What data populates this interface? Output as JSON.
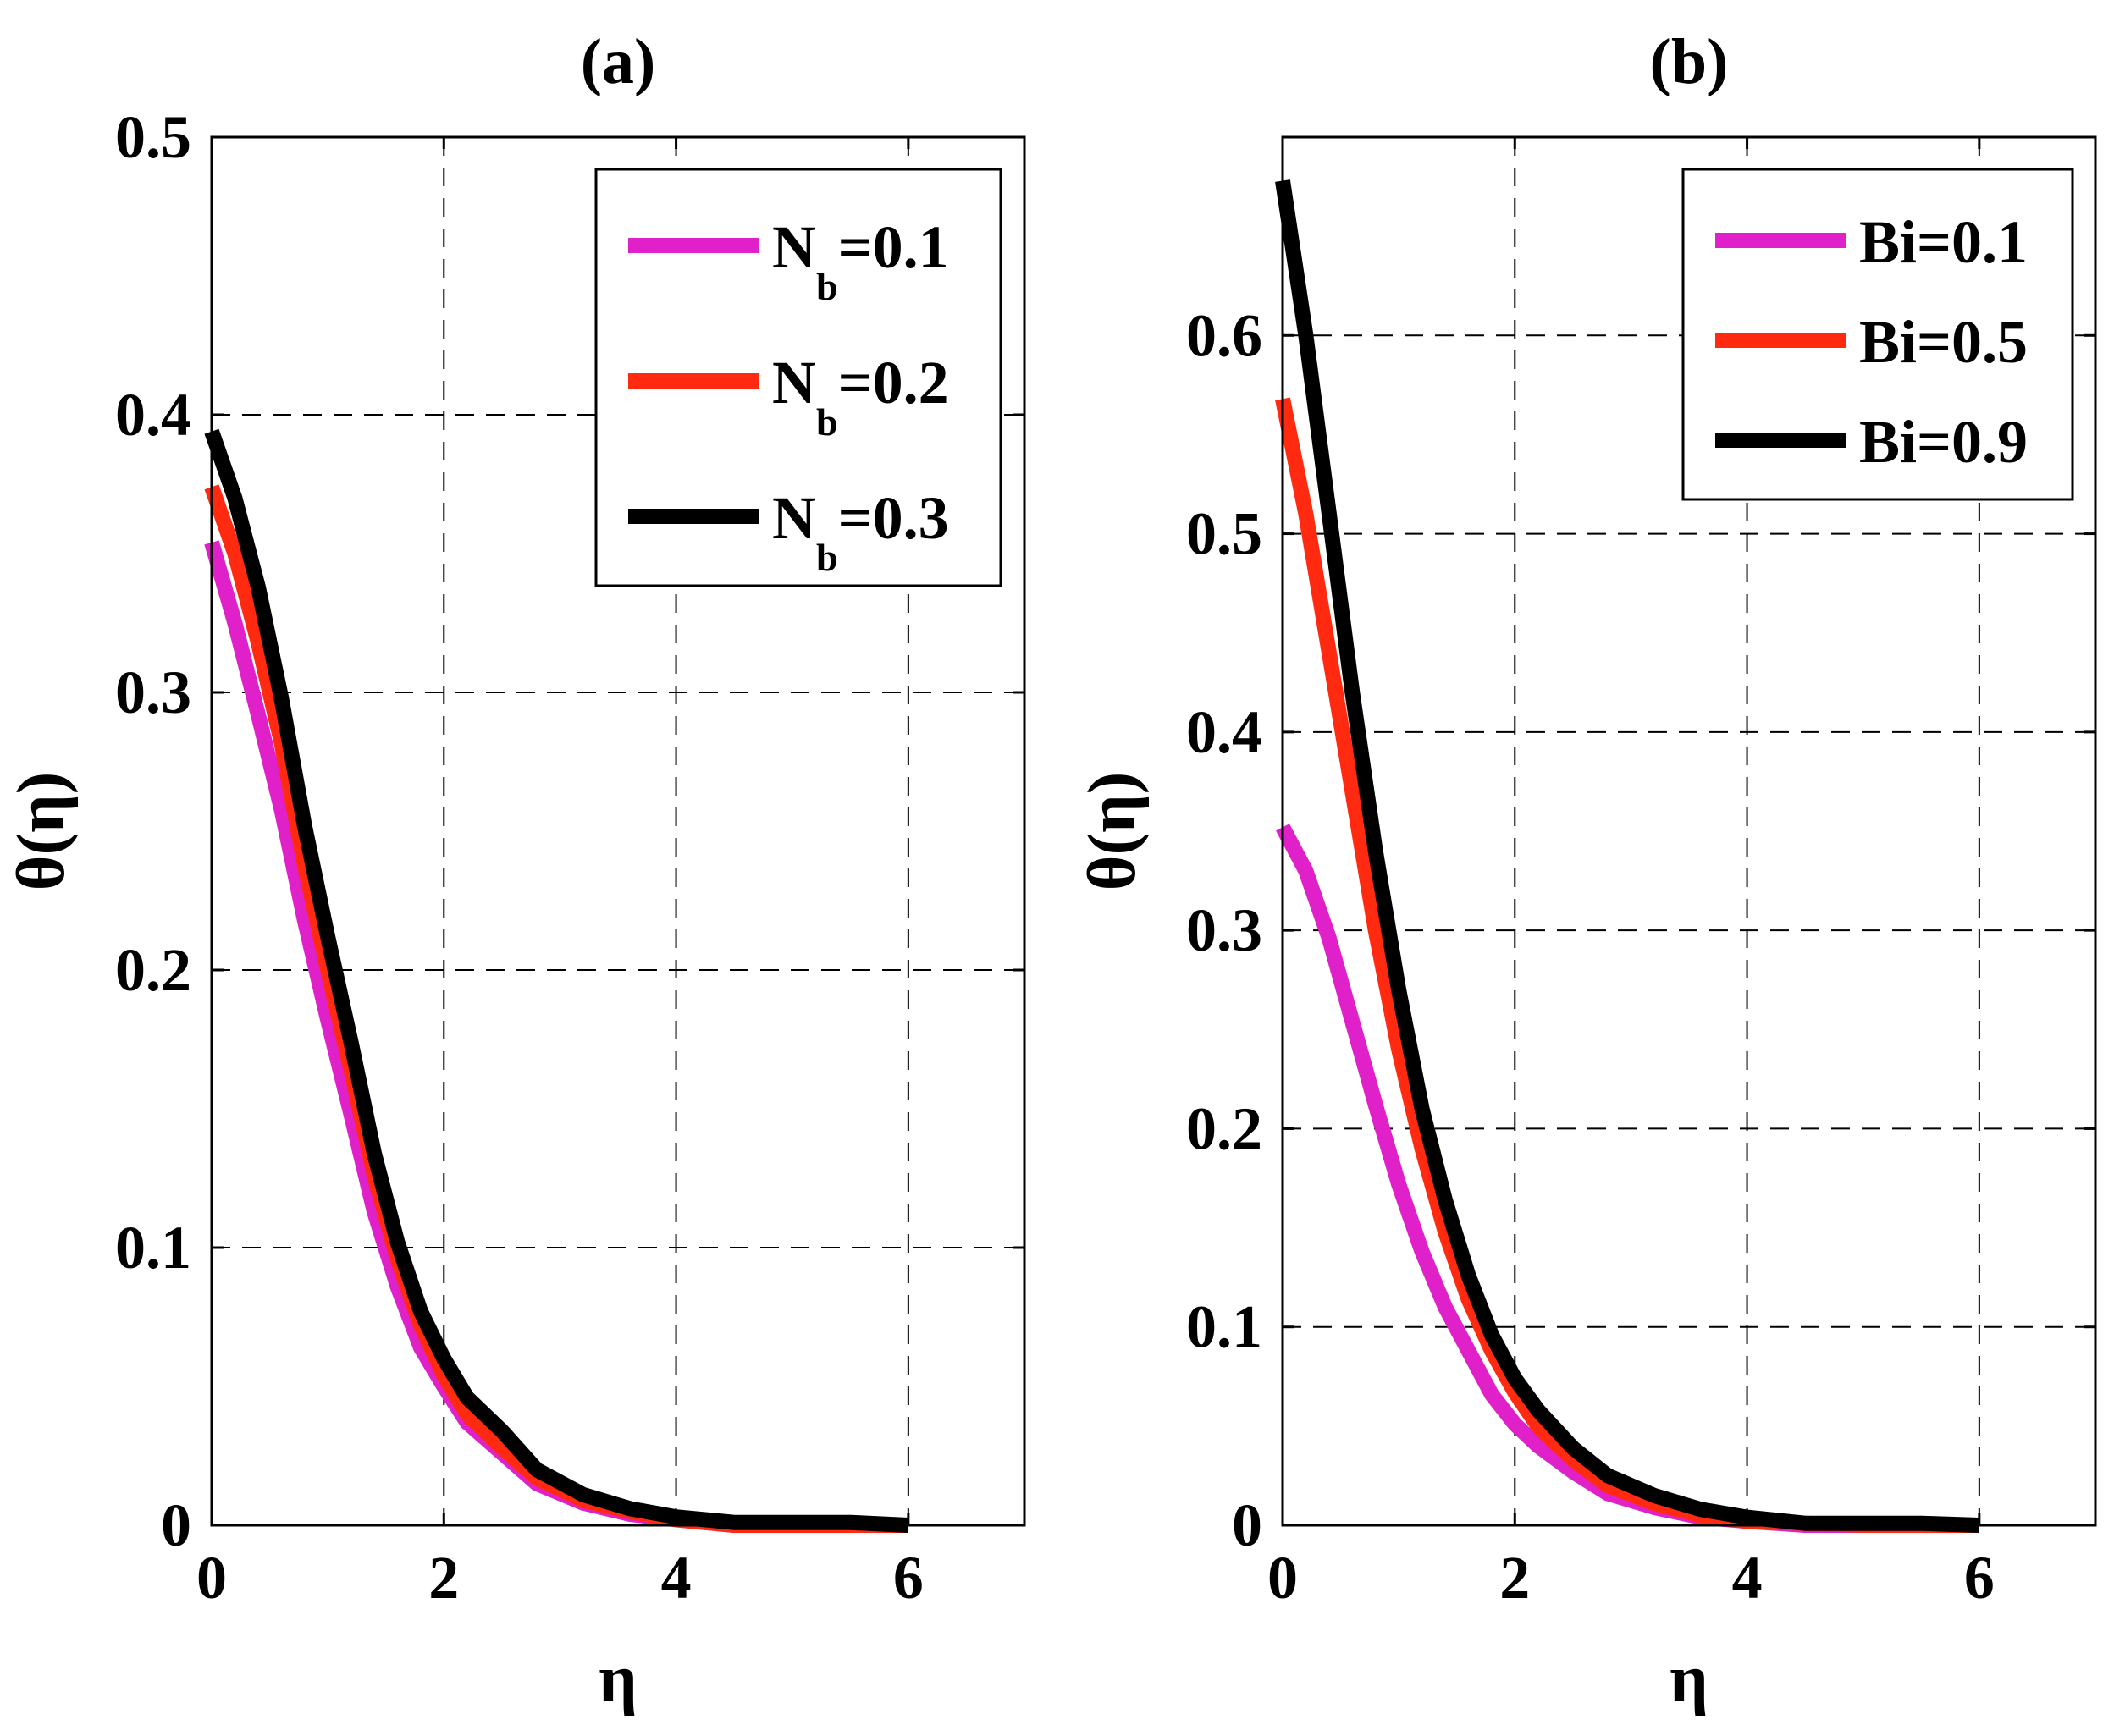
{
  "chart_data": [
    {
      "type": "line",
      "title": "(a)",
      "xlabel": "η",
      "ylabel": "θ(η)",
      "xlim": [
        0,
        7
      ],
      "ylim": [
        0,
        0.5
      ],
      "xticks": [
        0,
        2,
        4,
        6
      ],
      "yticks": [
        0,
        0.1,
        0.2,
        0.3,
        0.4,
        0.5
      ],
      "xtick_labels": [
        "0",
        "2",
        "4",
        "6"
      ],
      "ytick_labels": [
        "0",
        "0.1",
        "0.2",
        "0.3",
        "0.4",
        "0.5"
      ],
      "grid": true,
      "legend_position": "top-right",
      "series": [
        {
          "name": "N_b=0.1",
          "label_main": "N",
          "label_sub": "b",
          "label_tail": "=0.1",
          "color": "#e020c8",
          "x": [
            0,
            0.2,
            0.4,
            0.6,
            0.8,
            1.0,
            1.2,
            1.4,
            1.6,
            1.8,
            2.0,
            2.2,
            2.5,
            2.8,
            3.2,
            3.6,
            4.0,
            4.5,
            5.0,
            5.5,
            6.0
          ],
          "y": [
            0.354,
            0.325,
            0.292,
            0.258,
            0.218,
            0.182,
            0.148,
            0.113,
            0.086,
            0.064,
            0.05,
            0.037,
            0.026,
            0.015,
            0.008,
            0.004,
            0.002,
            0.0,
            0.0,
            0.0,
            0.0
          ]
        },
        {
          "name": "N_b=0.2",
          "label_main": "N",
          "label_sub": "b",
          "label_tail": "=0.2",
          "color": "#ff2a0f",
          "x": [
            0,
            0.2,
            0.4,
            0.6,
            0.8,
            1.0,
            1.2,
            1.4,
            1.6,
            1.8,
            2.0,
            2.2,
            2.5,
            2.8,
            3.2,
            3.6,
            4.0,
            4.5,
            5.0,
            5.5,
            6.0
          ],
          "y": [
            0.374,
            0.35,
            0.318,
            0.282,
            0.238,
            0.2,
            0.164,
            0.126,
            0.096,
            0.072,
            0.054,
            0.04,
            0.028,
            0.017,
            0.009,
            0.005,
            0.002,
            0.0,
            0.0,
            0.0,
            0.0
          ]
        },
        {
          "name": "N_b=0.3",
          "label_main": "N",
          "label_sub": "b",
          "label_tail": "=0.3",
          "color": "#000000",
          "x": [
            0,
            0.2,
            0.4,
            0.6,
            0.8,
            1.0,
            1.2,
            1.4,
            1.6,
            1.8,
            2.0,
            2.2,
            2.5,
            2.8,
            3.2,
            3.6,
            4.0,
            4.5,
            5.0,
            5.5,
            6.0
          ],
          "y": [
            0.394,
            0.37,
            0.338,
            0.298,
            0.252,
            0.212,
            0.174,
            0.134,
            0.102,
            0.077,
            0.06,
            0.046,
            0.034,
            0.02,
            0.011,
            0.006,
            0.003,
            0.001,
            0.001,
            0.001,
            0.0
          ]
        }
      ]
    },
    {
      "type": "line",
      "title": "(b)",
      "xlabel": "η",
      "ylabel": "θ(η)",
      "xlim": [
        0,
        7
      ],
      "ylim": [
        0,
        0.7
      ],
      "xticks": [
        0,
        2,
        4,
        6
      ],
      "yticks": [
        0,
        0.1,
        0.2,
        0.3,
        0.4,
        0.5,
        0.6
      ],
      "xtick_labels": [
        "0",
        "2",
        "4",
        "6"
      ],
      "ytick_labels": [
        "0",
        "0.1",
        "0.2",
        "0.3",
        "0.4",
        "0.5",
        "0.6"
      ],
      "grid": true,
      "legend_position": "top-right",
      "series": [
        {
          "name": "Bi=0.1",
          "label_main": "Bi=0.1",
          "label_sub": "",
          "label_tail": "",
          "color": "#e020c8",
          "x": [
            0,
            0.2,
            0.4,
            0.6,
            0.8,
            1.0,
            1.2,
            1.4,
            1.6,
            1.8,
            2.0,
            2.2,
            2.5,
            2.8,
            3.2,
            3.6,
            4.0,
            4.5,
            5.0,
            5.5,
            6.0
          ],
          "y": [
            0.352,
            0.33,
            0.296,
            0.254,
            0.212,
            0.172,
            0.138,
            0.11,
            0.088,
            0.066,
            0.051,
            0.04,
            0.027,
            0.016,
            0.009,
            0.004,
            0.002,
            0.0,
            0.0,
            0.0,
            0.0
          ]
        },
        {
          "name": "Bi=0.5",
          "label_main": "Bi=0.5",
          "label_sub": "",
          "label_tail": "",
          "color": "#ff2a0f",
          "x": [
            0,
            0.2,
            0.4,
            0.6,
            0.8,
            1.0,
            1.2,
            1.4,
            1.6,
            1.8,
            2.0,
            2.2,
            2.5,
            2.8,
            3.2,
            3.6,
            4.0,
            4.5,
            5.0,
            5.5,
            6.0
          ],
          "y": [
            0.568,
            0.51,
            0.44,
            0.37,
            0.3,
            0.24,
            0.19,
            0.148,
            0.114,
            0.088,
            0.067,
            0.05,
            0.033,
            0.02,
            0.011,
            0.005,
            0.002,
            0.001,
            0.0,
            0.0,
            0.0
          ]
        },
        {
          "name": "Bi=0.9",
          "label_main": "Bi=0.9",
          "label_sub": "",
          "label_tail": "",
          "color": "#000000",
          "x": [
            0,
            0.2,
            0.4,
            0.6,
            0.8,
            1.0,
            1.2,
            1.4,
            1.6,
            1.8,
            2.0,
            2.2,
            2.5,
            2.8,
            3.2,
            3.6,
            4.0,
            4.5,
            5.0,
            5.5,
            6.0
          ],
          "y": [
            0.678,
            0.6,
            0.51,
            0.42,
            0.34,
            0.27,
            0.21,
            0.164,
            0.126,
            0.096,
            0.074,
            0.058,
            0.039,
            0.025,
            0.015,
            0.008,
            0.004,
            0.001,
            0.001,
            0.001,
            0.0
          ]
        }
      ]
    }
  ]
}
